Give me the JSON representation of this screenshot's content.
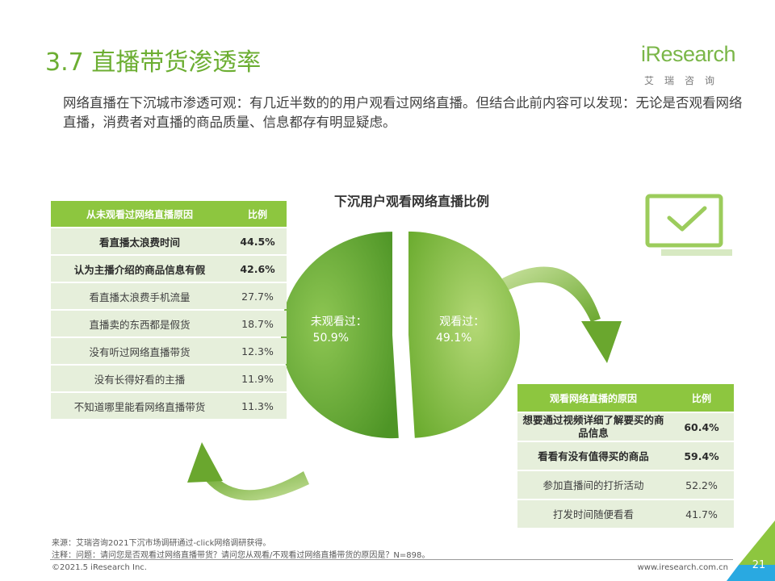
{
  "page": {
    "title": "3.7 直播带货渗透率",
    "intro": "网络直播在下沉城市渗透可观：有几近半数的的用户观看过网络直播。但结合此前内容可以发现：无论是否观看网络直播，消费者对直播的商品质量、信息都存有明显疑虑。"
  },
  "logo": {
    "main": "iResearch",
    "sub": "艾瑞咨询"
  },
  "chart_data": {
    "type": "pie",
    "title": "下沉用户观看网络直播比例",
    "slices": [
      {
        "label": "未观看过",
        "value": 50.9,
        "value_label": "50.9%"
      },
      {
        "label": "观看过",
        "value": 49.1,
        "value_label": "49.1%"
      }
    ]
  },
  "colors": {
    "accent": "#8dc63f",
    "slice_not_watched": "#7ab648",
    "slice_watched": "#8dc63f",
    "row_bg": "#e6efdb"
  },
  "icons": [
    "monitor-check-icon",
    "curved-arrow-icon"
  ],
  "table_not_watched": {
    "headers": [
      "从未观看过网络直播原因",
      "比例"
    ],
    "rows": [
      {
        "reason": "看直播太浪费时间",
        "pct": "44.5%",
        "bold": true
      },
      {
        "reason": "认为主播介绍的商品信息有假",
        "pct": "42.6%",
        "bold": true
      },
      {
        "reason": "看直播太浪费手机流量",
        "pct": "27.7%",
        "bold": false
      },
      {
        "reason": "直播卖的东西都是假货",
        "pct": "18.7%",
        "bold": false
      },
      {
        "reason": "没有听过网络直播带货",
        "pct": "12.3%",
        "bold": false
      },
      {
        "reason": "没有长得好看的主播",
        "pct": "11.9%",
        "bold": false
      },
      {
        "reason": "不知道哪里能看网络直播带货",
        "pct": "11.3%",
        "bold": false
      }
    ]
  },
  "table_watched": {
    "headers": [
      "观看网络直播的原因",
      "比例"
    ],
    "rows": [
      {
        "reason": "想要通过视频详细了解要买的商品信息",
        "pct": "60.4%",
        "bold": true
      },
      {
        "reason": "看看有没有值得买的商品",
        "pct": "59.4%",
        "bold": true
      },
      {
        "reason": "参加直播间的打折活动",
        "pct": "52.2%",
        "bold": false
      },
      {
        "reason": "打发时间随便看看",
        "pct": "41.7%",
        "bold": false
      }
    ]
  },
  "footer": {
    "source": "来源：艾瑞咨询2021下沉市场调研通过-click网络调研获得。",
    "note": "注释：问题：请问您是否观看过网络直播带货？请问您从观看/不观看过网络直播带货的原因是？N=898。",
    "copyright": "©2021.5 iResearch Inc.",
    "url": "www.iresearch.com.cn",
    "page_number": "21"
  }
}
